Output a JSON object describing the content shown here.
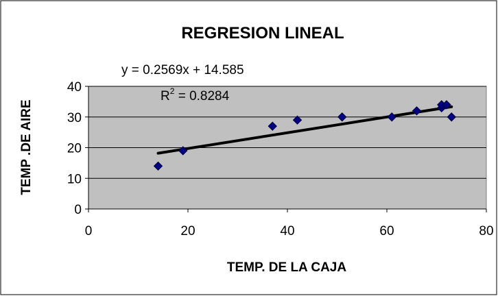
{
  "chart_data": {
    "type": "scatter",
    "title": "REGRESION LINEAL",
    "xlabel": "TEMP. DE LA CAJA",
    "ylabel": "TEMP .DE AIRE",
    "xlim": [
      0,
      80
    ],
    "ylim": [
      0,
      40
    ],
    "x_ticks": [
      "0",
      "20",
      "40",
      "60",
      "80"
    ],
    "y_ticks": [
      "0",
      "10",
      "20",
      "30",
      "40"
    ],
    "grid": "horizontal",
    "legend": "none",
    "series": [
      {
        "marker": "diamond",
        "color": "#000080",
        "points": [
          {
            "x": 14,
            "y": 14
          },
          {
            "x": 19,
            "y": 19
          },
          {
            "x": 37,
            "y": 27
          },
          {
            "x": 42,
            "y": 29
          },
          {
            "x": 51,
            "y": 30
          },
          {
            "x": 61,
            "y": 30
          },
          {
            "x": 66,
            "y": 32
          },
          {
            "x": 71,
            "y": 33
          },
          {
            "x": 71,
            "y": 34
          },
          {
            "x": 72,
            "y": 34
          },
          {
            "x": 73,
            "y": 30
          }
        ]
      }
    ],
    "trendline": {
      "type": "linear",
      "slope": 0.2569,
      "intercept": 14.585,
      "x_range": [
        14,
        73
      ],
      "equation_text": "y = 0.2569x + 14.585",
      "r2_label": "R",
      "r2_exponent": "2",
      "r2_value_text": " = 0.8284"
    },
    "colors": {
      "plot_background": "#c0c0c0",
      "marker": "#000080",
      "trendline": "#000000"
    }
  }
}
